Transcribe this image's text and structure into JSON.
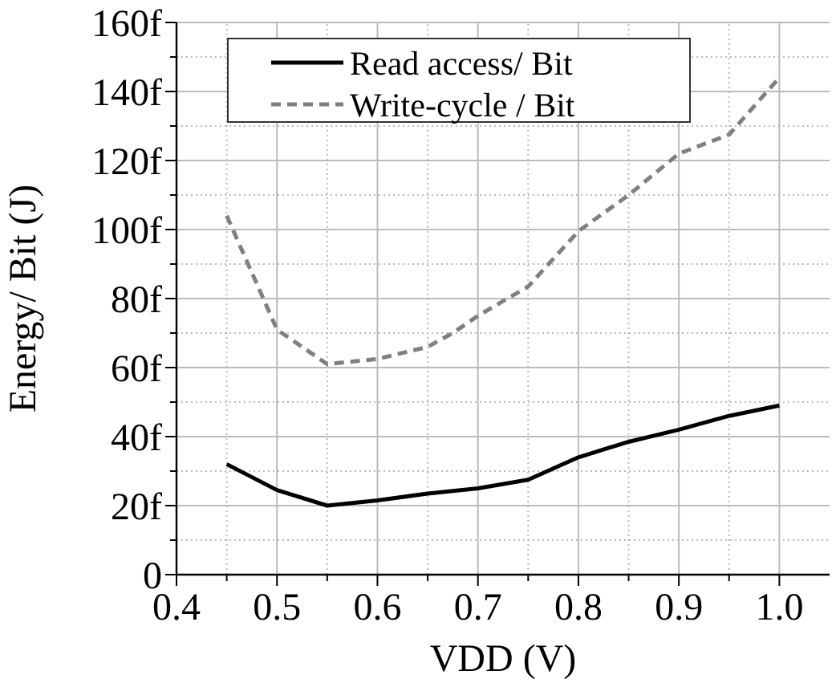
{
  "chart_data": {
    "type": "line",
    "xlabel": "VDD (V)",
    "ylabel": "Energy/ Bit (J)",
    "xlim": [
      0.4,
      1.05
    ],
    "ylim": [
      0,
      160
    ],
    "xticks": [
      0.4,
      {
        "value": 0.45,
        "label": null
      },
      0.5,
      {
        "value": 0.55,
        "label": null
      },
      0.6,
      {
        "value": 0.65,
        "label": null
      },
      0.7,
      {
        "value": 0.75,
        "label": null
      },
      0.8,
      {
        "value": 0.85,
        "label": null
      },
      0.9,
      {
        "value": 0.95,
        "label": null
      },
      {
        "value": 1,
        "label": "1.0"
      }
    ],
    "yticks": [
      0,
      {
        "value": 10,
        "label": null
      },
      {
        "value": 20,
        "label": "20f"
      },
      {
        "value": 30,
        "label": null
      },
      {
        "value": 40,
        "label": "40f"
      },
      {
        "value": 50,
        "label": null
      },
      {
        "value": 60,
        "label": "60f"
      },
      {
        "value": 70,
        "label": null
      },
      {
        "value": 80,
        "label": "80f"
      },
      {
        "value": 90,
        "label": null
      },
      {
        "value": 100,
        "label": "100f"
      },
      {
        "value": 110,
        "label": null
      },
      {
        "value": 120,
        "label": "120f"
      },
      {
        "value": 130,
        "label": null
      },
      {
        "value": 140,
        "label": "140f"
      },
      {
        "value": 150,
        "label": null
      },
      {
        "value": 160,
        "label": "160f"
      }
    ],
    "grid": true,
    "legend": "top left",
    "series": [
      {
        "name": "Read access/ Bit",
        "color": "#000000",
        "line_style": "solid",
        "x": [
          0.45,
          0.5,
          0.55,
          0.6,
          0.65,
          0.7,
          0.75,
          0.8,
          0.85,
          0.9,
          0.95,
          1.0
        ],
        "values": [
          32,
          24.5,
          20,
          21.5,
          23.5,
          25,
          27.5,
          34,
          38.5,
          42,
          46,
          49
        ]
      },
      {
        "name": "Write-cycle / Bit",
        "color": "#808080",
        "line_style": "dashed",
        "x": [
          0.45,
          0.5,
          0.55,
          0.6,
          0.65,
          0.675,
          0.7,
          0.75,
          0.8,
          0.85,
          0.9,
          0.95,
          1.0
        ],
        "values": [
          104,
          71,
          61,
          62.5,
          66,
          70,
          75,
          83.5,
          99.5,
          110,
          122,
          127.5,
          144
        ]
      }
    ]
  }
}
